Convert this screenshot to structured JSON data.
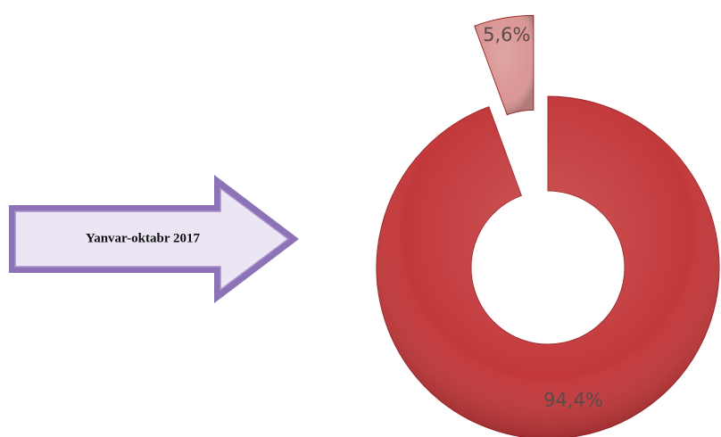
{
  "chart_data": {
    "type": "donut",
    "annotation": "Yanvar-oktabr  2017",
    "values": [
      94.4,
      5.6
    ],
    "value_labels": [
      "94,4%",
      "5,6%"
    ],
    "colors": [
      "#c3393b",
      "#d99694"
    ],
    "exploded": [
      false,
      true
    ]
  }
}
